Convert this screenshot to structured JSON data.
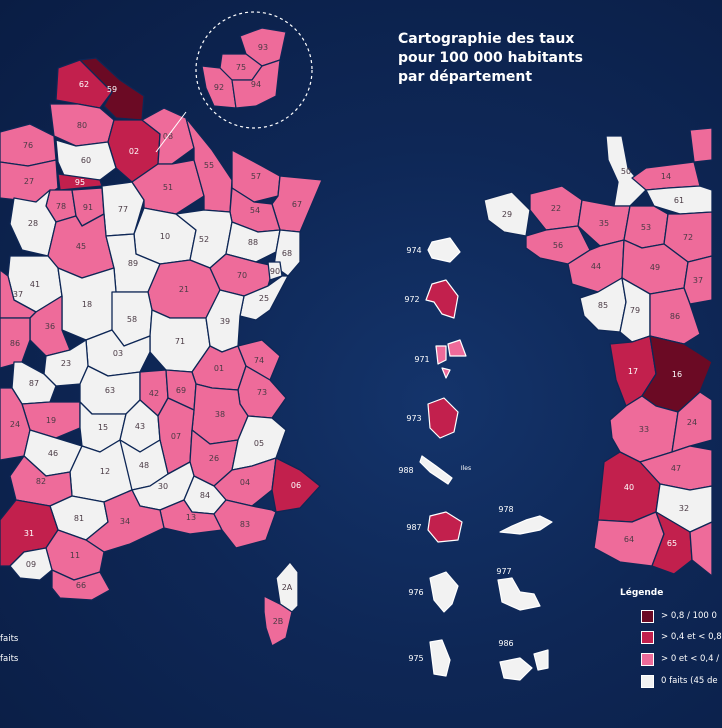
{
  "title": {
    "lines": [
      "Cartographie des taux",
      "pour 100 000 habitants",
      "par département"
    ]
  },
  "colors": {
    "very_high": "#6b0a24",
    "high": "#c2204d",
    "medium": "#ee6b9a",
    "zero": "#f2f2f2",
    "background": "#0e2756",
    "border": "#0e2756"
  },
  "legend": {
    "title": "Légende",
    "items": [
      {
        "label": "> 0,8 / 100 0",
        "color": "#6b0a24"
      },
      {
        "label": "> 0,4 et < 0,8",
        "color": "#c2204d"
      },
      {
        "label": "> 0 et < 0,4 /",
        "color": "#ee6b9a"
      },
      {
        "label": "0 faits (45 de",
        "color": "#f2f2f2"
      }
    ]
  },
  "left_legend_fragments": [
    "faits",
    "faits"
  ],
  "left_map_departments": [
    {
      "code": "62",
      "level": "high"
    },
    {
      "code": "59",
      "level": "very_high"
    },
    {
      "code": "80",
      "level": "medium"
    },
    {
      "code": "02",
      "level": "high"
    },
    {
      "code": "76",
      "level": "medium"
    },
    {
      "code": "60",
      "level": "zero"
    },
    {
      "code": "08",
      "level": "medium"
    },
    {
      "code": "27",
      "level": "medium"
    },
    {
      "code": "95",
      "level": "high"
    },
    {
      "code": "78",
      "level": "medium"
    },
    {
      "code": "91",
      "level": "medium"
    },
    {
      "code": "77",
      "level": "zero"
    },
    {
      "code": "51",
      "level": "medium"
    },
    {
      "code": "55",
      "level": "medium"
    },
    {
      "code": "57",
      "level": "medium"
    },
    {
      "code": "67",
      "level": "medium"
    },
    {
      "code": "54",
      "level": "medium"
    },
    {
      "code": "28",
      "level": "zero"
    },
    {
      "code": "10",
      "level": "zero"
    },
    {
      "code": "52",
      "level": "zero"
    },
    {
      "code": "88",
      "level": "zero"
    },
    {
      "code": "68",
      "level": "zero"
    },
    {
      "code": "45",
      "level": "medium"
    },
    {
      "code": "89",
      "level": "zero"
    },
    {
      "code": "70",
      "level": "medium"
    },
    {
      "code": "90",
      "level": "zero"
    },
    {
      "code": "41",
      "level": "zero"
    },
    {
      "code": "21",
      "level": "medium"
    },
    {
      "code": "25",
      "level": "zero"
    },
    {
      "code": "37",
      "level": "medium"
    },
    {
      "code": "18",
      "level": "zero"
    },
    {
      "code": "58",
      "level": "zero"
    },
    {
      "code": "36",
      "level": "medium"
    },
    {
      "code": "71",
      "level": "zero"
    },
    {
      "code": "39",
      "level": "zero"
    },
    {
      "code": "86",
      "level": "medium"
    },
    {
      "code": "03",
      "level": "zero"
    },
    {
      "code": "23",
      "level": "zero"
    },
    {
      "code": "01",
      "level": "medium"
    },
    {
      "code": "74",
      "level": "medium"
    },
    {
      "code": "87",
      "level": "zero"
    },
    {
      "code": "63",
      "level": "zero"
    },
    {
      "code": "42",
      "level": "medium"
    },
    {
      "code": "69",
      "level": "medium"
    },
    {
      "code": "73",
      "level": "medium"
    },
    {
      "code": "19",
      "level": "medium"
    },
    {
      "code": "38",
      "level": "medium"
    },
    {
      "code": "24",
      "level": "medium"
    },
    {
      "code": "15",
      "level": "zero"
    },
    {
      "code": "43",
      "level": "zero"
    },
    {
      "code": "46",
      "level": "zero"
    },
    {
      "code": "07",
      "level": "medium"
    },
    {
      "code": "26",
      "level": "medium"
    },
    {
      "code": "05",
      "level": "zero"
    },
    {
      "code": "12",
      "level": "zero"
    },
    {
      "code": "48",
      "level": "zero"
    },
    {
      "code": "04",
      "level": "medium"
    },
    {
      "code": "06",
      "level": "high"
    },
    {
      "code": "82",
      "level": "medium"
    },
    {
      "code": "81",
      "level": "zero"
    },
    {
      "code": "30",
      "level": "zero"
    },
    {
      "code": "84",
      "level": "zero"
    },
    {
      "code": "13",
      "level": "medium"
    },
    {
      "code": "83",
      "level": "medium"
    },
    {
      "code": "31",
      "level": "high"
    },
    {
      "code": "34",
      "level": "medium"
    },
    {
      "code": "11",
      "level": "medium"
    },
    {
      "code": "09",
      "level": "zero"
    },
    {
      "code": "66",
      "level": "medium"
    },
    {
      "code": "2A",
      "level": "zero"
    },
    {
      "code": "2B",
      "level": "medium"
    }
  ],
  "idf_inset": [
    {
      "code": "93",
      "level": "medium"
    },
    {
      "code": "75",
      "level": "medium"
    },
    {
      "code": "92",
      "level": "medium"
    },
    {
      "code": "94",
      "level": "medium"
    }
  ],
  "right_map_departments": [
    {
      "code": "50",
      "level": "zero"
    },
    {
      "code": "14",
      "level": "medium"
    },
    {
      "code": "61",
      "level": "zero"
    },
    {
      "code": "29",
      "level": "zero"
    },
    {
      "code": "22",
      "level": "medium"
    },
    {
      "code": "35",
      "level": "medium"
    },
    {
      "code": "53",
      "level": "medium"
    },
    {
      "code": "72",
      "level": "medium"
    },
    {
      "code": "56",
      "level": "medium"
    },
    {
      "code": "44",
      "level": "medium"
    },
    {
      "code": "49",
      "level": "medium"
    },
    {
      "code": "37",
      "level": "medium"
    },
    {
      "code": "85",
      "level": "zero"
    },
    {
      "code": "79",
      "level": "zero"
    },
    {
      "code": "86",
      "level": "medium"
    },
    {
      "code": "17",
      "level": "high"
    },
    {
      "code": "16",
      "level": "very_high"
    },
    {
      "code": "33",
      "level": "medium"
    },
    {
      "code": "24",
      "level": "medium"
    },
    {
      "code": "47",
      "level": "medium"
    },
    {
      "code": "40",
      "level": "high"
    },
    {
      "code": "32",
      "level": "zero"
    },
    {
      "code": "64",
      "level": "medium"
    },
    {
      "code": "65",
      "level": "high"
    }
  ],
  "overseas": [
    {
      "code": "974",
      "level": "zero"
    },
    {
      "code": "972",
      "level": "high"
    },
    {
      "code": "971",
      "level": "medium"
    },
    {
      "code": "973",
      "level": "high"
    },
    {
      "code": "988",
      "level": "zero"
    },
    {
      "code": "987",
      "level": "high"
    },
    {
      "code": "978",
      "level": "zero"
    },
    {
      "code": "976",
      "level": "zero"
    },
    {
      "code": "977",
      "level": "zero"
    },
    {
      "code": "975",
      "level": "zero"
    },
    {
      "code": "986",
      "level": "zero"
    }
  ],
  "islands_label": "Iles"
}
